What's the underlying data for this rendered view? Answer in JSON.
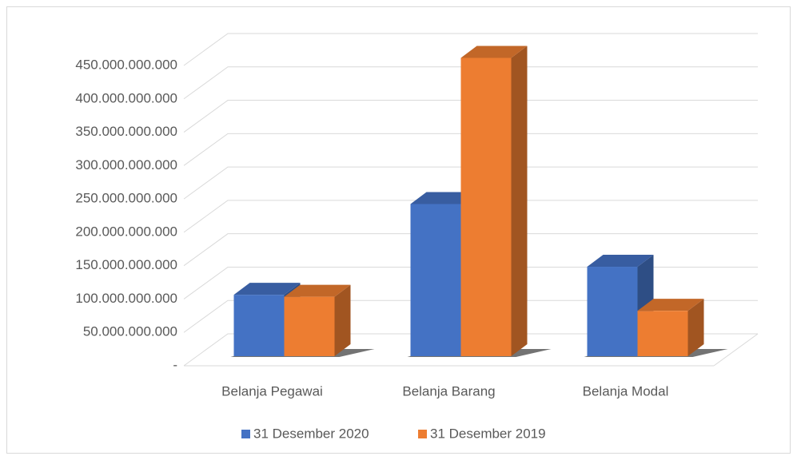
{
  "chart_data": {
    "type": "bar3d",
    "categories": [
      "Belanja Pegawai",
      "Belanja Barang",
      "Belanja Modal"
    ],
    "series": [
      {
        "name": "31 Desember 2020",
        "color": "#4472c4",
        "values": [
          92000000000,
          228000000000,
          134000000000
        ]
      },
      {
        "name": "31 Desember 2019",
        "color": "#ed7d31",
        "values": [
          89000000000,
          447000000000,
          68000000000
        ]
      }
    ],
    "ylim": [
      0,
      450000000000
    ],
    "yticks": [
      {
        "value": 0,
        "label": "-"
      },
      {
        "value": 50000000000,
        "label": "50.000.000.000"
      },
      {
        "value": 100000000000,
        "label": "100.000.000.000"
      },
      {
        "value": 150000000000,
        "label": "150.000.000.000"
      },
      {
        "value": 200000000000,
        "label": "200.000.000.000"
      },
      {
        "value": 250000000000,
        "label": "250.000.000.000"
      },
      {
        "value": 300000000000,
        "label": "300.000.000.000"
      },
      {
        "value": 350000000000,
        "label": "350.000.000.000"
      },
      {
        "value": 400000000000,
        "label": "400.000.000.000"
      },
      {
        "value": 450000000000,
        "label": "450.000.000.000"
      }
    ],
    "grid": true,
    "legend": "bottom"
  }
}
